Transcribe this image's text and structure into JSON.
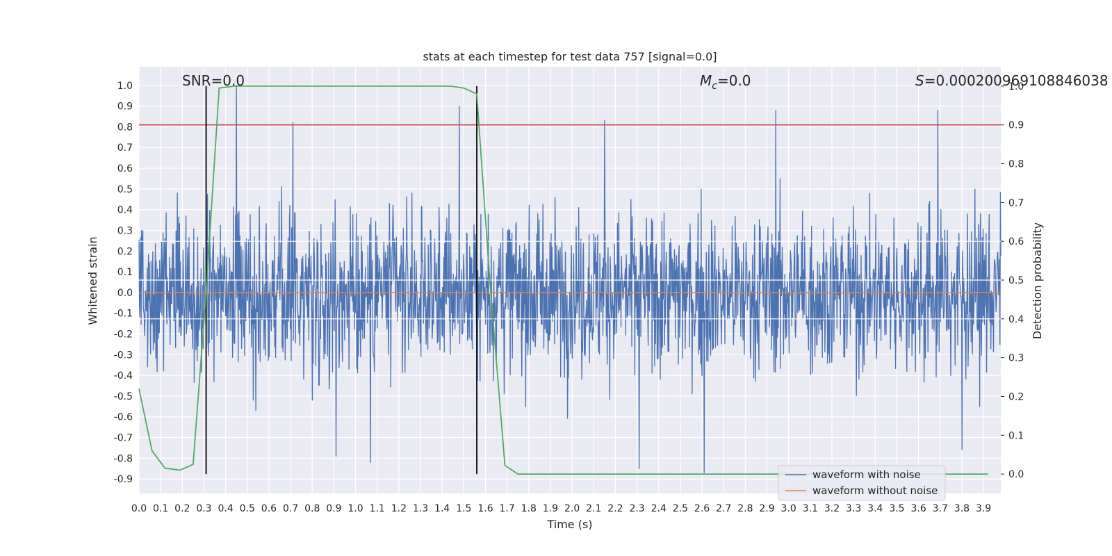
{
  "chart_data": {
    "type": "line",
    "title": "stats at each timestep for test data 757 [signal=0.0]",
    "xlabel": "Time (s)",
    "ylabel": "Whitened strain",
    "ylabel_right": "Detection probability",
    "xlim": [
      0.0,
      3.98
    ],
    "ylim": [
      -0.97,
      1.09
    ],
    "ylim_right": [
      -0.05,
      1.05
    ],
    "x_ticks": [
      0.0,
      0.1,
      0.2,
      0.3,
      0.4,
      0.5,
      0.6,
      0.7,
      0.8,
      0.9,
      1.0,
      1.1,
      1.2,
      1.3,
      1.4,
      1.5,
      1.6,
      1.7,
      1.8,
      1.9,
      2.0,
      2.1,
      2.2,
      2.3,
      2.4,
      2.5,
      2.6,
      2.7,
      2.8,
      2.9,
      3.0,
      3.1,
      3.2,
      3.3,
      3.4,
      3.5,
      3.6,
      3.7,
      3.8,
      3.9
    ],
    "x_tick_labels": [
      "0.0",
      "0.1",
      "0.2",
      "0.3",
      "0.4",
      "0.5",
      "0.6",
      "0.7",
      "0.8",
      "0.9",
      "1.0",
      "1.1",
      "1.2",
      "1.3",
      "1.4",
      "1.5",
      "1.6",
      "1.7",
      "1.8",
      "1.9",
      "2.0",
      "2.1",
      "2.2",
      "2.3",
      "2.4",
      "2.5",
      "2.6",
      "2.7",
      "2.8",
      "2.9",
      "3.0",
      "3.1",
      "3.2",
      "3.3",
      "3.4",
      "3.5",
      "3.6",
      "3.7",
      "3.8",
      "3.9"
    ],
    "y_ticks": [
      1.0,
      0.9,
      0.8,
      0.7,
      0.6,
      0.5,
      0.4,
      0.3,
      0.2,
      0.1,
      0.0,
      -0.1,
      -0.2,
      -0.3,
      -0.4,
      -0.5,
      -0.6,
      -0.7,
      -0.8,
      -0.9
    ],
    "y_tick_labels": [
      "1.0",
      "0.9",
      "0.8",
      "0.7",
      "0.6",
      "0.5",
      "0.4",
      "0.3",
      "0.2",
      "0.1",
      "0.0",
      "-0.1",
      "-0.2",
      "-0.3",
      "-0.4",
      "-0.5",
      "-0.6",
      "-0.7",
      "-0.8",
      "-0.9"
    ],
    "y_right_ticks": [
      1.0,
      0.9,
      0.8,
      0.7,
      0.6,
      0.5,
      0.4,
      0.3,
      0.2,
      0.1,
      0.0
    ],
    "y_right_tick_labels": [
      "1.0",
      "0.9",
      "0.8",
      "0.7",
      "0.6",
      "0.5",
      "0.4",
      "0.3",
      "0.2",
      "0.1",
      "0.0"
    ],
    "annotations": {
      "snr": "SNR=0.0",
      "mc_symbol": "M",
      "mc_sub": "c",
      "mc_value": "=0.0",
      "s_symbol": "S",
      "s_value": "=0.00020096910884603​8"
    },
    "threshold_line": {
      "axis": "right",
      "value": 0.9,
      "color": "#c44e52"
    },
    "vertical_lines": [
      0.31,
      1.56
    ],
    "noise_series": {
      "name": "waveform with noise",
      "color": "#4c72b0",
      "n_samples": 2000,
      "seed": 757,
      "std": 0.19,
      "max_abs": 1.0,
      "spikes": [
        {
          "x": 0.45,
          "y": 1.0
        },
        {
          "x": 0.71,
          "y": 0.82
        },
        {
          "x": 1.48,
          "y": 0.9
        },
        {
          "x": 2.15,
          "y": 0.83
        },
        {
          "x": 2.94,
          "y": 0.88
        },
        {
          "x": 3.69,
          "y": 0.88
        },
        {
          "x": 2.31,
          "y": -0.85
        },
        {
          "x": 2.61,
          "y": -0.87
        },
        {
          "x": 1.07,
          "y": -0.82
        },
        {
          "x": 0.91,
          "y": -0.79
        },
        {
          "x": 3.8,
          "y": -0.76
        }
      ]
    },
    "clean_series": {
      "name": "waveform without noise",
      "color": "#dd8452",
      "x": [
        0.0,
        3.98
      ],
      "y": [
        0.0,
        0.0
      ]
    },
    "probability_series": {
      "name": "Detection probability",
      "color": "#55a868",
      "x": [
        0.0,
        0.06,
        0.12,
        0.19,
        0.25,
        0.31,
        0.37,
        0.44,
        0.5,
        0.56,
        0.62,
        0.69,
        0.75,
        0.81,
        0.87,
        0.94,
        1.0,
        1.06,
        1.12,
        1.19,
        1.25,
        1.31,
        1.37,
        1.44,
        1.5,
        1.56,
        1.62,
        1.69,
        1.75,
        1.81,
        1.87,
        1.94,
        2.0,
        2.06,
        2.12,
        2.19,
        2.25,
        2.31,
        2.37,
        2.44,
        2.5,
        2.56,
        2.62,
        2.69,
        2.75,
        2.81,
        2.87,
        2.94,
        3.0,
        3.06,
        3.12,
        3.19,
        3.25,
        3.31,
        3.37,
        3.44,
        3.5,
        3.56,
        3.62,
        3.69,
        3.75,
        3.81,
        3.86,
        3.92
      ],
      "y": [
        0.22,
        0.06,
        0.015,
        0.01,
        0.025,
        0.47,
        0.995,
        1.0,
        1.0,
        1.0,
        1.0,
        1.0,
        1.0,
        1.0,
        1.0,
        1.0,
        1.0,
        1.0,
        1.0,
        1.0,
        1.0,
        1.0,
        1.0,
        1.0,
        0.995,
        0.98,
        0.5,
        0.022,
        0.0,
        0.0,
        0.0,
        0.0,
        0.0,
        0.0,
        0.0,
        0.0,
        0.0,
        0.0,
        0.0,
        0.0,
        0.0,
        0.0,
        0.0,
        0.0,
        0.0,
        0.0,
        0.0,
        0.0,
        0.0,
        0.0,
        0.0,
        0.0,
        0.0,
        0.0,
        0.0,
        0.0,
        0.0,
        0.0,
        0.0,
        0.0,
        0.0,
        0.0,
        0.0,
        0.0
      ]
    },
    "legend": {
      "position": "lower-right",
      "entries": [
        {
          "label": "waveform with noise",
          "color": "#4c72b0"
        },
        {
          "label": "waveform without noise",
          "color": "#dd8452"
        }
      ]
    }
  }
}
